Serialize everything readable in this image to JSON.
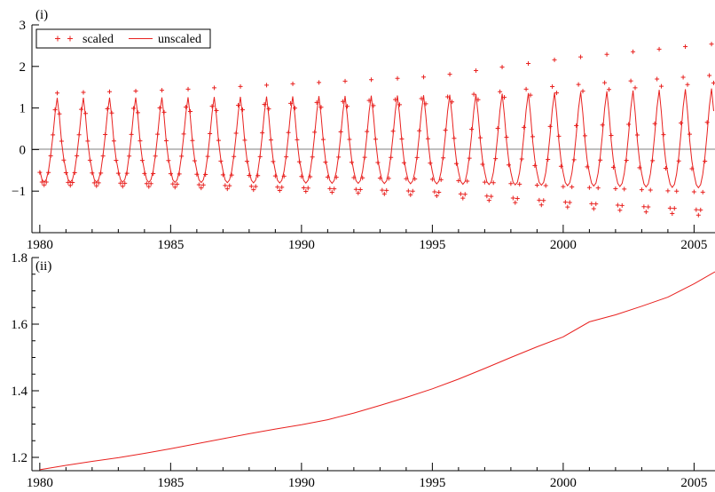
{
  "chart_data": [
    {
      "panel_label": "(i)",
      "type": "line",
      "ylim": [
        -2.0,
        3.0
      ],
      "yticks": [
        3,
        2,
        1,
        0,
        -1
      ],
      "xlim": [
        1979.7,
        2005.8
      ],
      "xticks": [
        1980,
        1985,
        1990,
        1995,
        2000,
        2005
      ],
      "zero_line": true,
      "grid": false,
      "legend": {
        "position": "top-left",
        "boxed": true
      },
      "series": [
        {
          "name": "scaled",
          "style": "markers",
          "marker": "+",
          "color": "#e8211f",
          "start": 1980.0,
          "frequency": "monthly",
          "model": {
            "seasonal": [
              -0.55,
              -0.78,
              -0.85,
              -0.78,
              -0.55,
              -0.15,
              0.35,
              0.95,
              1.35,
              0.85,
              0.2,
              -0.25
            ],
            "scale_knots": [
              [
                1980,
                1.0
              ],
              [
                1985,
                1.06
              ],
              [
                1990,
                1.18
              ],
              [
                1995,
                1.3
              ],
              [
                2000,
                1.62
              ],
              [
                2005,
                1.85
              ]
            ]
          }
        },
        {
          "name": "unscaled",
          "style": "line",
          "color": "#e8211f",
          "start": 1980.0,
          "frequency": "monthly",
          "model": {
            "seasonal": [
              -0.55,
              -0.78,
              -0.85,
              -0.78,
              -0.55,
              -0.15,
              0.35,
              0.95,
              1.35,
              0.85,
              0.2,
              -0.25
            ],
            "scale_knots": [
              [
                1980,
                0.92
              ],
              [
                1985,
                0.93
              ],
              [
                1990,
                0.95
              ],
              [
                1995,
                0.97
              ],
              [
                2000,
                1.02
              ],
              [
                2005,
                1.08
              ]
            ]
          }
        }
      ]
    },
    {
      "panel_label": "(ii)",
      "type": "line",
      "ylim": [
        1.16,
        1.8
      ],
      "yticks": [
        1.8,
        1.6,
        1.4,
        1.2
      ],
      "ytick_labels": [
        "1.8",
        "1.6",
        "1.4",
        "1.2"
      ],
      "xlim": [
        1979.7,
        2005.8
      ],
      "xticks": [
        1980,
        1985,
        1990,
        1995,
        2000,
        2005
      ],
      "grid": false,
      "series": [
        {
          "color": "#e8211f",
          "x": [
            1980.0,
            1981,
            1982,
            1983,
            1984,
            1985,
            1986,
            1987,
            1988,
            1989,
            1990,
            1991,
            1992,
            1993,
            1994,
            1995,
            1996,
            1997,
            1998,
            1999,
            2000,
            2001,
            2002,
            2003,
            2004,
            2005,
            2005.8
          ],
          "y": [
            1.163,
            1.176,
            1.188,
            1.199,
            1.212,
            1.226,
            1.241,
            1.256,
            1.271,
            1.285,
            1.298,
            1.313,
            1.333,
            1.356,
            1.38,
            1.406,
            1.435,
            1.467,
            1.5,
            1.532,
            1.562,
            1.607,
            1.628,
            1.654,
            1.681,
            1.721,
            1.757
          ]
        }
      ]
    }
  ]
}
